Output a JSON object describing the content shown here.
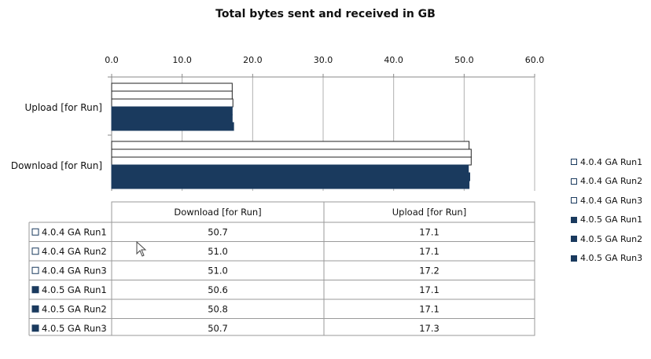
{
  "chart_data": {
    "type": "bar",
    "orientation": "horizontal",
    "title": "Total bytes sent and received in GB",
    "categories": [
      "Upload [for Run]",
      "Download [for Run]"
    ],
    "table_columns": [
      "Download [for Run]",
      "Upload [for Run]"
    ],
    "xlim": [
      0,
      60
    ],
    "x_ticks": [
      "0.0",
      "10.0",
      "20.0",
      "30.0",
      "40.0",
      "50.0",
      "60.0"
    ],
    "grid": true,
    "legend_position": "right",
    "series": [
      {
        "name": "4.0.4 GA Run1",
        "color": "#ffffff",
        "values": {
          "Download [for Run]": 50.7,
          "Upload [for Run]": 17.1
        },
        "display": [
          "50.7",
          "17.1"
        ]
      },
      {
        "name": "4.0.4 GA Run2",
        "color": "#ffffff",
        "values": {
          "Download [for Run]": 51.0,
          "Upload [for Run]": 17.1
        },
        "display": [
          "51.0",
          "17.1"
        ]
      },
      {
        "name": "4.0.4 GA Run3",
        "color": "#ffffff",
        "values": {
          "Download [for Run]": 51.0,
          "Upload [for Run]": 17.2
        },
        "display": [
          "51.0",
          "17.2"
        ]
      },
      {
        "name": "4.0.5 GA Run1",
        "color": "#1a3a5e",
        "values": {
          "Download [for Run]": 50.6,
          "Upload [for Run]": 17.1
        },
        "display": [
          "50.6",
          "17.1"
        ]
      },
      {
        "name": "4.0.5 GA Run2",
        "color": "#1a3a5e",
        "values": {
          "Download [for Run]": 50.8,
          "Upload [for Run]": 17.1
        },
        "display": [
          "50.8",
          "17.1"
        ]
      },
      {
        "name": "4.0.5 GA Run3",
        "color": "#1a3a5e",
        "values": {
          "Download [for Run]": 50.7,
          "Upload [for Run]": 17.3
        },
        "display": [
          "50.7",
          "17.3"
        ]
      }
    ]
  }
}
